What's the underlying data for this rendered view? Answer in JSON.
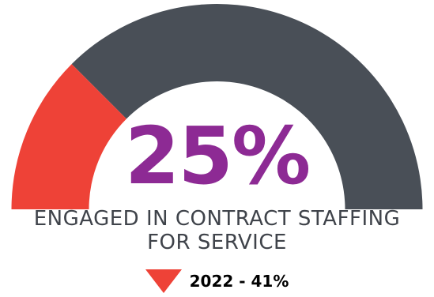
{
  "chart_data": {
    "type": "gauge",
    "value": 25,
    "value_label": "25%",
    "range": [
      0,
      100
    ],
    "caption_lines": [
      "ENGAGED IN CONTRACT STAFFING",
      "FOR SERVICE"
    ],
    "comparison": {
      "label": "2022 - 41%",
      "year": "2022",
      "value": 41,
      "direction": "down"
    }
  },
  "colors": {
    "filled": "#ee4237",
    "remaining": "#494f57",
    "value_text": "#8d2a94",
    "arrow": "#ee4237"
  }
}
